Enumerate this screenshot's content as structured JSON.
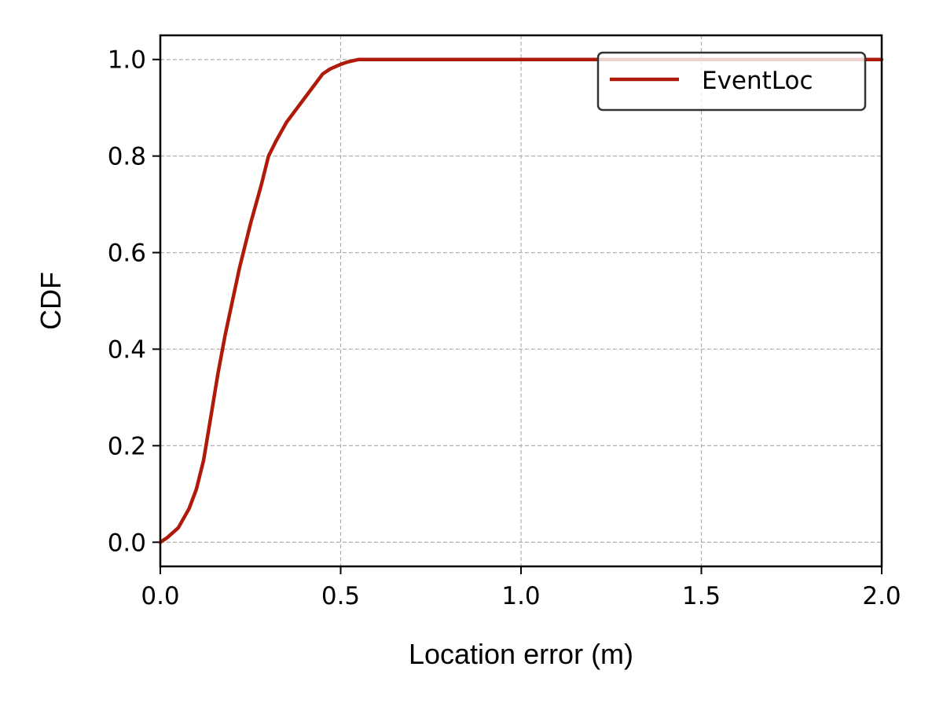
{
  "chart_data": {
    "type": "line",
    "title": "",
    "xlabel": "Location error (m)",
    "ylabel": "CDF",
    "xlim": [
      0.0,
      2.0
    ],
    "ylim": [
      -0.05,
      1.05
    ],
    "x_ticks": [
      "0.0",
      "0.5",
      "1.0",
      "1.5",
      "2.0"
    ],
    "y_ticks": [
      "0.0",
      "0.2",
      "0.4",
      "0.6",
      "0.8",
      "1.0"
    ],
    "grid": true,
    "legend_position": "top-right",
    "series": [
      {
        "name": "EventLoc",
        "color": "#b01a0b",
        "x": [
          0.0,
          0.02,
          0.05,
          0.08,
          0.1,
          0.12,
          0.14,
          0.16,
          0.18,
          0.2,
          0.22,
          0.25,
          0.28,
          0.3,
          0.32,
          0.35,
          0.38,
          0.4,
          0.42,
          0.45,
          0.47,
          0.5,
          0.52,
          0.55,
          0.6,
          0.8,
          1.0,
          1.5,
          2.0
        ],
        "y": [
          0.0,
          0.01,
          0.03,
          0.07,
          0.11,
          0.17,
          0.26,
          0.35,
          0.43,
          0.5,
          0.57,
          0.66,
          0.74,
          0.8,
          0.83,
          0.87,
          0.9,
          0.92,
          0.94,
          0.97,
          0.98,
          0.99,
          0.995,
          1.0,
          1.0,
          1.0,
          1.0,
          1.0,
          1.0
        ]
      }
    ]
  }
}
